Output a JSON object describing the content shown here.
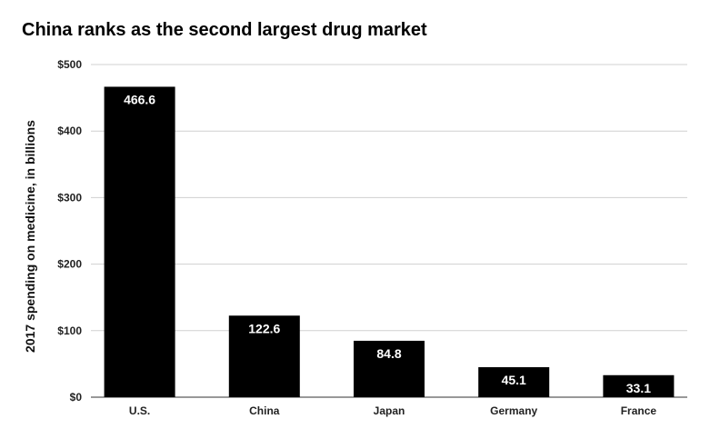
{
  "title": "China ranks as the second largest drug market",
  "chart_data": {
    "type": "bar",
    "title": "China ranks as the second largest drug market",
    "xlabel": "",
    "ylabel": "2017 spending on medicine, in billions",
    "categories": [
      "U.S.",
      "China",
      "Japan",
      "Germany",
      "France"
    ],
    "values": [
      466.6,
      122.6,
      84.8,
      45.1,
      33.1
    ],
    "data_labels": [
      "466.6",
      "122.6",
      "84.8",
      "45.1",
      "33.1"
    ],
    "ylim": [
      0,
      500
    ],
    "yticks": [
      0,
      100,
      200,
      300,
      400,
      500
    ],
    "ytick_labels": [
      "$0",
      "$100",
      "$200",
      "$300",
      "$400",
      "$500"
    ],
    "grid": true,
    "bar_color": "#000000",
    "label_color": "#ffffff"
  }
}
